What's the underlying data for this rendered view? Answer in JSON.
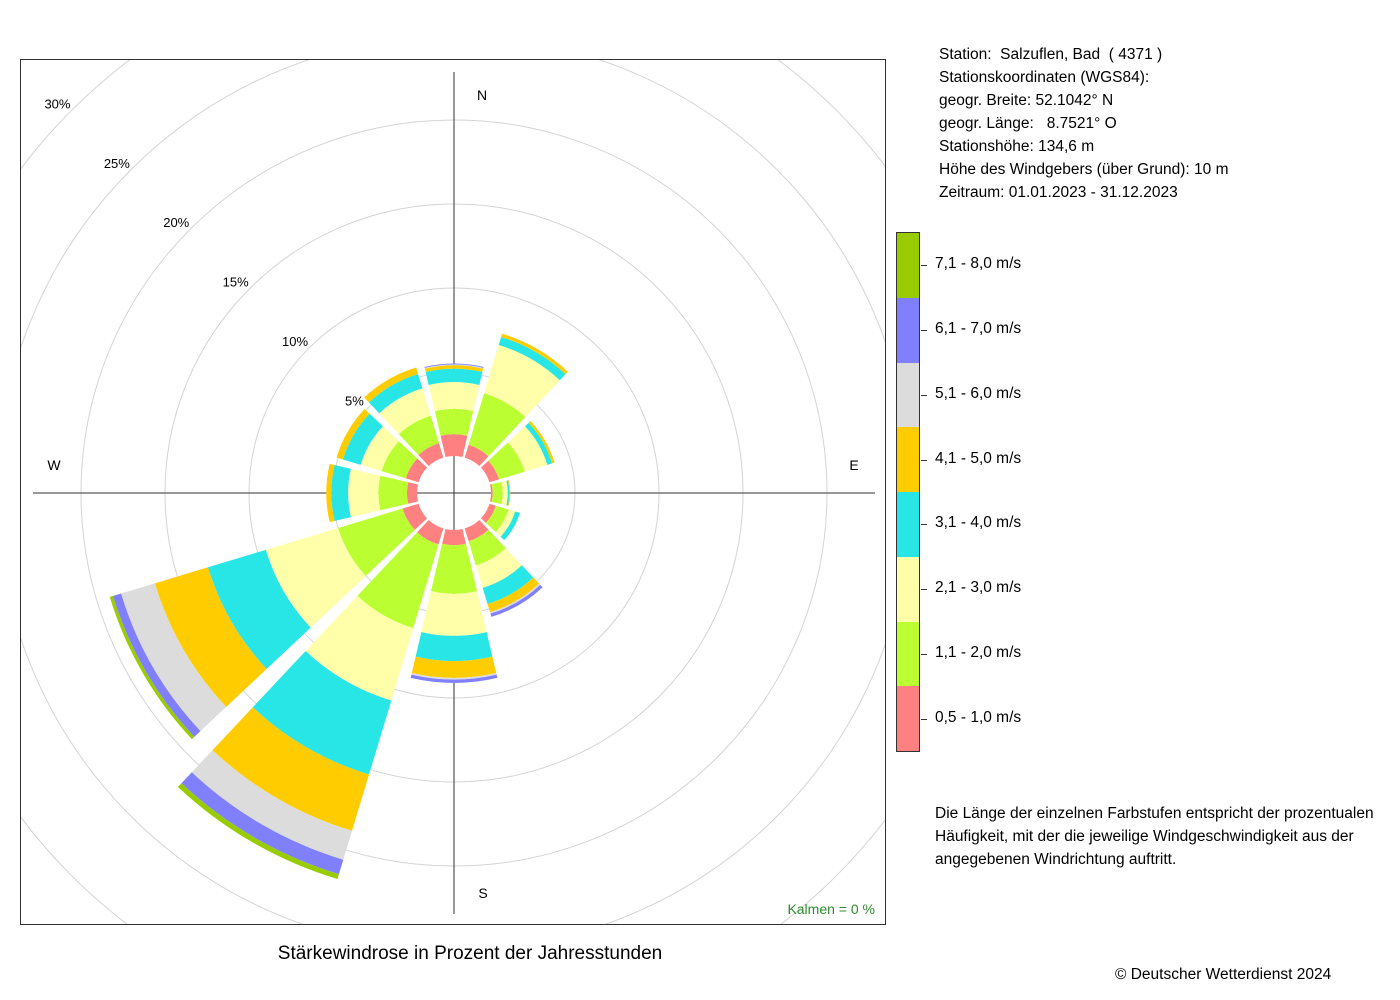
{
  "title": "Stärkewindrose in Prozent der Jahresstunden",
  "copyright": "© Deutscher Wetterdienst  2024",
  "calm_label": "Kalmen  =  0 %",
  "info_lines": [
    "Station:  Salzuflen, Bad  ( 4371 )",
    "Stationskoordinaten (WGS84):",
    "geogr. Breite: 52.1042° N",
    "geogr. Länge:   8.7521° O",
    "Stationshöhe: 134,6 m",
    "Höhe des Windgebers (über Grund): 10 m",
    "Zeitraum: 01.01.2023 - 31.12.2023"
  ],
  "note_lines": [
    "Die Länge der einzelnen Farbstufen entspricht der prozentualen",
    "Häufigkeit, mit der die jeweilige Windgeschwindigkeit aus der",
    "angegebenen Windrichtung auftritt."
  ],
  "chart_data": {
    "type": "polar-stacked-bar",
    "subtype": "wind-rose",
    "compass_labels": [
      "N",
      "E",
      "S",
      "W"
    ],
    "ring_labels": [
      "5%",
      "10%",
      "15%",
      "20%",
      "25%",
      "30%"
    ],
    "rings": [
      5,
      10,
      15,
      20,
      25,
      30
    ],
    "grid": true,
    "calm_percent": 0,
    "legend_position": "right",
    "speed_classes": [
      {
        "label": "0,5 - 1,0 m/s",
        "color": "#ff8080"
      },
      {
        "label": "1,1 - 2,0 m/s",
        "color": "#bbff33"
      },
      {
        "label": "2,1 - 3,0 m/s",
        "color": "#ffffaa"
      },
      {
        "label": "3,1 - 4,0 m/s",
        "color": "#29e6e6"
      },
      {
        "label": "4,1 - 5,0 m/s",
        "color": "#ffcc00"
      },
      {
        "label": "5,1 - 6,0 m/s",
        "color": "#dcdcdc"
      },
      {
        "label": "6,1 - 7,0 m/s",
        "color": "#8080ff"
      },
      {
        "label": "7,1 - 8,0 m/s",
        "color": "#99cc00"
      }
    ],
    "directions_deg": [
      0,
      30,
      60,
      90,
      120,
      150,
      180,
      210,
      240,
      270,
      300,
      330
    ],
    "values_percent": [
      [
        1.3,
        1.5,
        1.6,
        0.8,
        0.2,
        0.05,
        0.05,
        0.0
      ],
      [
        0.8,
        3.2,
        3.0,
        0.5,
        0.2,
        0.0,
        0.0,
        0.0
      ],
      [
        0.6,
        1.6,
        1.4,
        0.3,
        0.15,
        0.0,
        0.0,
        0.0
      ],
      [
        0.1,
        0.6,
        0.3,
        0.1,
        0.05,
        0.0,
        0.0,
        0.0
      ],
      [
        0.4,
        0.8,
        0.4,
        0.3,
        0.0,
        0.0,
        0.0,
        0.0
      ],
      [
        0.8,
        1.5,
        1.4,
        1.0,
        0.5,
        0.1,
        0.2,
        0.0
      ],
      [
        0.9,
        2.9,
        2.5,
        1.5,
        1.0,
        0.1,
        0.2,
        0.0
      ],
      [
        1.0,
        5.2,
        4.5,
        4.6,
        3.5,
        1.8,
        0.9,
        0.3
      ],
      [
        1.0,
        4.0,
        4.5,
        3.6,
        3.3,
        2.1,
        0.5,
        0.2
      ],
      [
        0.6,
        1.7,
        1.8,
        1.0,
        0.3,
        0.0,
        0.0,
        0.0
      ],
      [
        0.8,
        1.5,
        1.3,
        1.1,
        0.4,
        0.0,
        0.0,
        0.0
      ],
      [
        0.9,
        1.7,
        1.7,
        0.9,
        0.4,
        0.0,
        0.0,
        0.0
      ]
    ]
  }
}
